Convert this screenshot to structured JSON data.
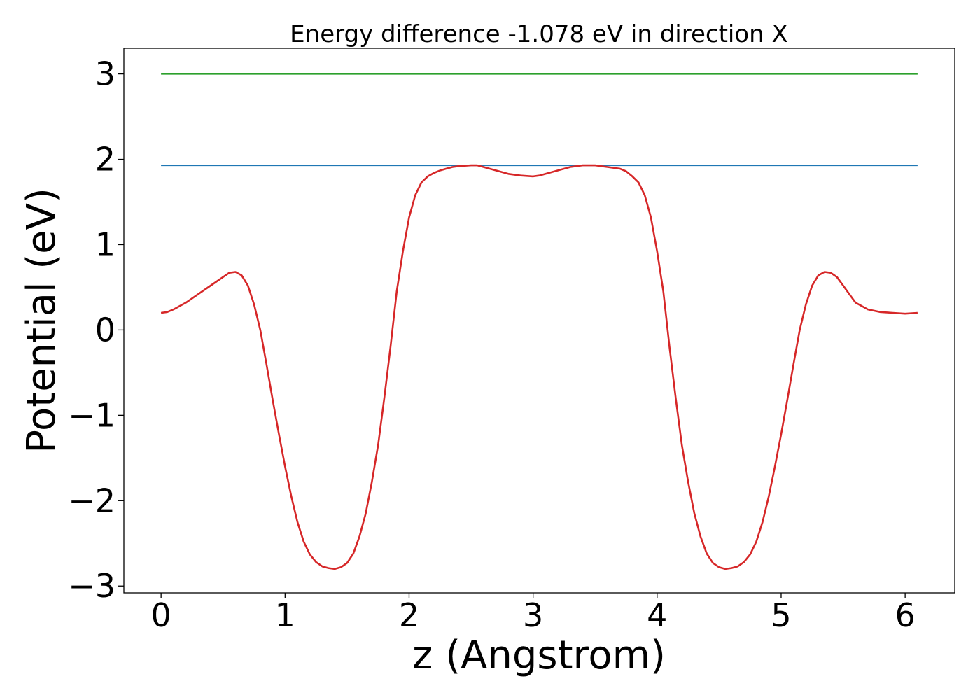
{
  "chart_data": {
    "type": "line",
    "title": "Energy difference -1.078 eV in direction X",
    "xlabel": "z (Angstrom)",
    "ylabel": "Potential (eV)",
    "xlim": [
      -0.3,
      6.4
    ],
    "ylim": [
      -3.08,
      3.3
    ],
    "grid": false,
    "x_ticks": [
      0,
      1,
      2,
      3,
      4,
      5,
      6
    ],
    "x_tick_labels": [
      "0",
      "1",
      "2",
      "3",
      "4",
      "5",
      "6"
    ],
    "y_ticks": [
      -3,
      -2,
      -1,
      0,
      1,
      2,
      3
    ],
    "y_tick_labels": [
      "−3",
      "−2",
      "−1",
      "0",
      "1",
      "2",
      "3"
    ],
    "series": [
      {
        "color": "#2ca02c",
        "x": [
          0,
          6.1
        ],
        "y": [
          3.0,
          3.0
        ]
      },
      {
        "color": "#1f77b4",
        "x": [
          0,
          6.1
        ],
        "y": [
          1.93,
          1.93
        ]
      },
      {
        "color": "#d62728",
        "x": [
          0,
          0.05,
          0.1,
          0.2,
          0.3,
          0.4,
          0.5,
          0.55,
          0.6,
          0.65,
          0.7,
          0.75,
          0.8,
          0.85,
          0.9,
          0.95,
          1.0,
          1.05,
          1.1,
          1.15,
          1.2,
          1.25,
          1.3,
          1.35,
          1.4,
          1.45,
          1.5,
          1.55,
          1.6,
          1.65,
          1.7,
          1.75,
          1.8,
          1.85,
          1.9,
          1.95,
          2.0,
          2.05,
          2.1,
          2.15,
          2.2,
          2.25,
          2.3,
          2.35,
          2.4,
          2.5,
          2.55,
          2.6,
          2.7,
          2.8,
          2.9,
          3.0,
          3.05,
          3.1,
          3.2,
          3.3,
          3.4,
          3.5,
          3.55,
          3.6,
          3.7,
          3.75,
          3.8,
          3.85,
          3.9,
          3.95,
          4.0,
          4.05,
          4.1,
          4.15,
          4.2,
          4.25,
          4.3,
          4.35,
          4.4,
          4.45,
          4.5,
          4.55,
          4.6,
          4.65,
          4.7,
          4.75,
          4.8,
          4.85,
          4.9,
          4.95,
          5.0,
          5.05,
          5.1,
          5.15,
          5.2,
          5.25,
          5.3,
          5.35,
          5.4,
          5.45,
          5.5,
          5.55,
          5.6,
          5.7,
          5.8,
          5.9,
          6.0,
          6.1
        ],
        "y": [
          0.2,
          0.21,
          0.24,
          0.32,
          0.42,
          0.52,
          0.62,
          0.67,
          0.68,
          0.64,
          0.52,
          0.3,
          0.0,
          -0.4,
          -0.82,
          -1.22,
          -1.6,
          -1.95,
          -2.25,
          -2.48,
          -2.63,
          -2.72,
          -2.77,
          -2.79,
          -2.8,
          -2.78,
          -2.73,
          -2.62,
          -2.42,
          -2.15,
          -1.78,
          -1.35,
          -0.8,
          -0.2,
          0.45,
          0.92,
          1.32,
          1.58,
          1.73,
          1.8,
          1.84,
          1.87,
          1.89,
          1.91,
          1.92,
          1.93,
          1.93,
          1.91,
          1.87,
          1.83,
          1.81,
          1.8,
          1.81,
          1.83,
          1.87,
          1.91,
          1.93,
          1.93,
          1.92,
          1.91,
          1.89,
          1.86,
          1.8,
          1.73,
          1.58,
          1.32,
          0.92,
          0.45,
          -0.2,
          -0.8,
          -1.35,
          -1.78,
          -2.15,
          -2.42,
          -2.62,
          -2.73,
          -2.78,
          -2.8,
          -2.79,
          -2.77,
          -2.72,
          -2.63,
          -2.48,
          -2.25,
          -1.95,
          -1.6,
          -1.22,
          -0.82,
          -0.4,
          0.0,
          0.3,
          0.52,
          0.64,
          0.68,
          0.67,
          0.62,
          0.52,
          0.42,
          0.32,
          0.24,
          0.21,
          0.2,
          0.19,
          0.2
        ]
      }
    ]
  }
}
